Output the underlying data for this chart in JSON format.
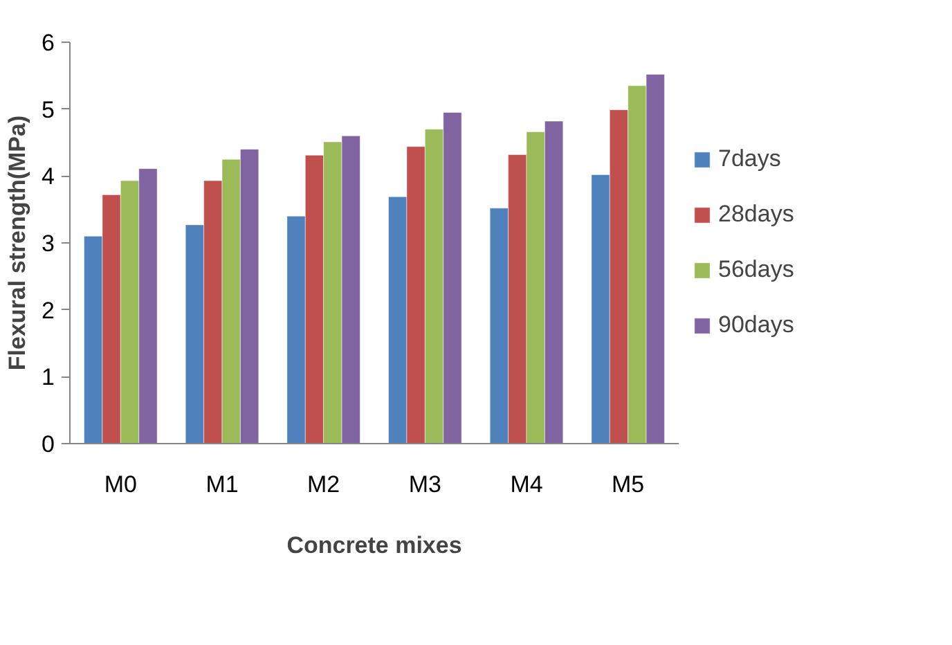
{
  "chart_data": {
    "type": "bar",
    "xlabel": "Concrete mixes",
    "ylabel": "Flexural strength(MPa)",
    "categories": [
      "M0",
      "M1",
      "M2",
      "M3",
      "M4",
      "M5"
    ],
    "series": [
      {
        "name": "7days",
        "color": "#4f81bd",
        "values": [
          3.1,
          3.27,
          3.4,
          3.69,
          3.52,
          4.02
        ]
      },
      {
        "name": "28days",
        "color": "#c0504d",
        "values": [
          3.72,
          3.93,
          4.31,
          4.44,
          4.32,
          4.99
        ]
      },
      {
        "name": "56days",
        "color": "#9bbb59",
        "values": [
          3.93,
          4.25,
          4.51,
          4.7,
          4.66,
          5.35
        ]
      },
      {
        "name": "90days",
        "color": "#8064a2",
        "values": [
          4.11,
          4.4,
          4.6,
          4.95,
          4.82,
          5.52
        ]
      }
    ],
    "ylim": [
      0,
      6
    ],
    "yticks": [
      0,
      1,
      2,
      3,
      4,
      5,
      6
    ],
    "grid": false,
    "legend": "right"
  }
}
